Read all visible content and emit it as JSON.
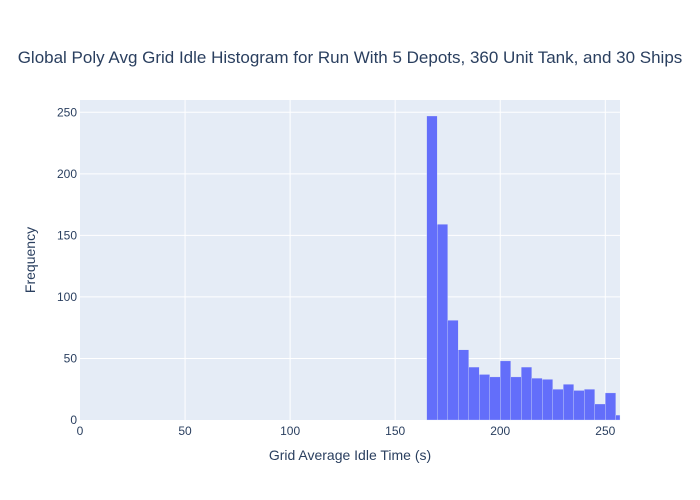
{
  "chart_data": {
    "type": "bar",
    "title": "Global Poly Avg Grid Idle Histogram for Run With 5 Depots, 360 Unit Tank, and 30 Ships",
    "xlabel": "Grid Average Idle Time (s)",
    "ylabel": "Frequency",
    "xlim": [
      0,
      257
    ],
    "ylim": [
      0,
      260
    ],
    "x_ticks": [
      0,
      50,
      100,
      150,
      200,
      250
    ],
    "y_ticks": [
      0,
      50,
      100,
      150,
      200,
      250
    ],
    "grid": true,
    "bin_width": 5,
    "bins": [
      {
        "start": 165,
        "end": 170,
        "count": 247
      },
      {
        "start": 170,
        "end": 175,
        "count": 159
      },
      {
        "start": 175,
        "end": 180,
        "count": 81
      },
      {
        "start": 180,
        "end": 185,
        "count": 57
      },
      {
        "start": 185,
        "end": 190,
        "count": 43
      },
      {
        "start": 190,
        "end": 195,
        "count": 37
      },
      {
        "start": 195,
        "end": 200,
        "count": 35
      },
      {
        "start": 200,
        "end": 205,
        "count": 48
      },
      {
        "start": 205,
        "end": 210,
        "count": 35
      },
      {
        "start": 210,
        "end": 215,
        "count": 43
      },
      {
        "start": 215,
        "end": 220,
        "count": 34
      },
      {
        "start": 220,
        "end": 225,
        "count": 33
      },
      {
        "start": 225,
        "end": 230,
        "count": 25
      },
      {
        "start": 230,
        "end": 235,
        "count": 29
      },
      {
        "start": 235,
        "end": 240,
        "count": 24
      },
      {
        "start": 240,
        "end": 245,
        "count": 25
      },
      {
        "start": 245,
        "end": 250,
        "count": 13
      },
      {
        "start": 250,
        "end": 255,
        "count": 22
      },
      {
        "start": 255,
        "end": 260,
        "count": 4
      }
    ],
    "colors": {
      "bar": "#636efa",
      "plot_background": "#e5ecf6",
      "grid": "#ffffff",
      "text": "#2a3f5f"
    }
  }
}
